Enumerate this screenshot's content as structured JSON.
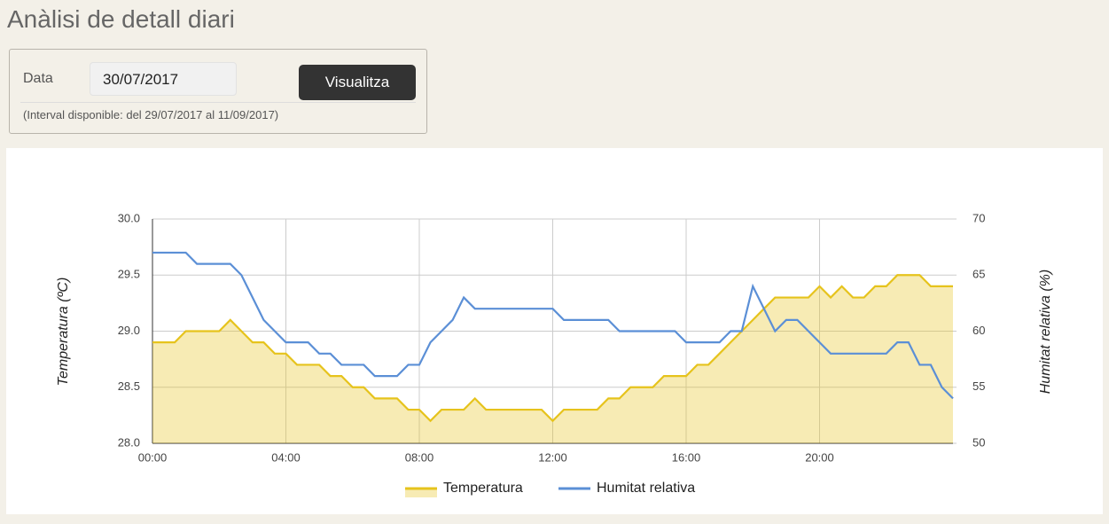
{
  "header": {
    "title": "Anàlisi de detall diari"
  },
  "form": {
    "label": "Data",
    "date": "30/07/2017",
    "button": "Visualitza",
    "note": "(Interval disponible: del 29/07/2017 al 11/09/2017)"
  },
  "chart_data": {
    "type": "line",
    "ylabel": "Temperatura (ºC)",
    "y2label": "Humitat relativa (%)",
    "x": [
      0,
      20,
      40,
      60,
      80,
      100,
      120,
      140,
      160,
      180,
      200,
      220,
      240,
      260,
      280,
      300,
      320,
      340,
      360,
      380,
      400,
      420,
      440,
      460,
      480,
      500,
      520,
      540,
      560,
      580,
      600,
      620,
      640,
      660,
      680,
      700,
      720,
      740,
      760,
      780,
      800,
      820,
      840,
      860,
      880,
      900,
      920,
      940,
      960,
      980,
      1000,
      1020,
      1040,
      1060,
      1080,
      1100,
      1120,
      1140,
      1160,
      1180,
      1200,
      1220,
      1240,
      1260,
      1280,
      1300,
      1320,
      1340,
      1360,
      1380,
      1400,
      1420,
      1440
    ],
    "xlim": [
      0,
      1440
    ],
    "xticks": [
      {
        "value": 0,
        "label": "00:00"
      },
      {
        "value": 240,
        "label": "04:00"
      },
      {
        "value": 480,
        "label": "08:00"
      },
      {
        "value": 720,
        "label": "12:00"
      },
      {
        "value": 960,
        "label": "16:00"
      },
      {
        "value": 1200,
        "label": "20:00"
      }
    ],
    "ylim": [
      28,
      30
    ],
    "yticks": [
      {
        "value": 28,
        "label": "28.0"
      },
      {
        "value": 28.5,
        "label": "28.5"
      },
      {
        "value": 29,
        "label": "29.0"
      },
      {
        "value": 29.5,
        "label": "29.5"
      },
      {
        "value": 30,
        "label": "30.0"
      }
    ],
    "y2lim": [
      50,
      70
    ],
    "y2ticks": [
      50,
      55,
      60,
      65,
      70
    ],
    "grid": true,
    "legend": "bottom",
    "series": [
      {
        "name": "Temperatura",
        "color": "#e6c31c",
        "area": true,
        "values": [
          28.9,
          28.9,
          28.9,
          29.0,
          29.0,
          29.0,
          29.0,
          29.1,
          29.0,
          28.9,
          28.9,
          28.8,
          28.8,
          28.7,
          28.7,
          28.7,
          28.6,
          28.6,
          28.5,
          28.5,
          28.4,
          28.4,
          28.4,
          28.3,
          28.3,
          28.2,
          28.3,
          28.3,
          28.3,
          28.4,
          28.3,
          28.3,
          28.3,
          28.3,
          28.3,
          28.3,
          28.2,
          28.3,
          28.3,
          28.3,
          28.3,
          28.4,
          28.4,
          28.5,
          28.5,
          28.5,
          28.6,
          28.6,
          28.6,
          28.7,
          28.7,
          28.8,
          28.9,
          29.0,
          29.1,
          29.2,
          29.3,
          29.3,
          29.3,
          29.3,
          29.4,
          29.3,
          29.4,
          29.3,
          29.3,
          29.4,
          29.4,
          29.5,
          29.5,
          29.5,
          29.4,
          29.4,
          29.4
        ]
      },
      {
        "name": "Humitat relativa",
        "color": "#5b8fd6",
        "axis": "y2",
        "area": false,
        "values": [
          67,
          67,
          67,
          67,
          66,
          66,
          66,
          66,
          65,
          63,
          61,
          60,
          59,
          59,
          59,
          58,
          58,
          57,
          57,
          57,
          56,
          56,
          56,
          57,
          57,
          59,
          60,
          61,
          63,
          62,
          62,
          62,
          62,
          62,
          62,
          62,
          62,
          61,
          61,
          61,
          61,
          61,
          60,
          60,
          60,
          60,
          60,
          60,
          59,
          59,
          59,
          59,
          60,
          60,
          64,
          62,
          60,
          61,
          61,
          60,
          59,
          58,
          58,
          58,
          58,
          58,
          58,
          59,
          59,
          57,
          57,
          55,
          54
        ]
      }
    ]
  }
}
